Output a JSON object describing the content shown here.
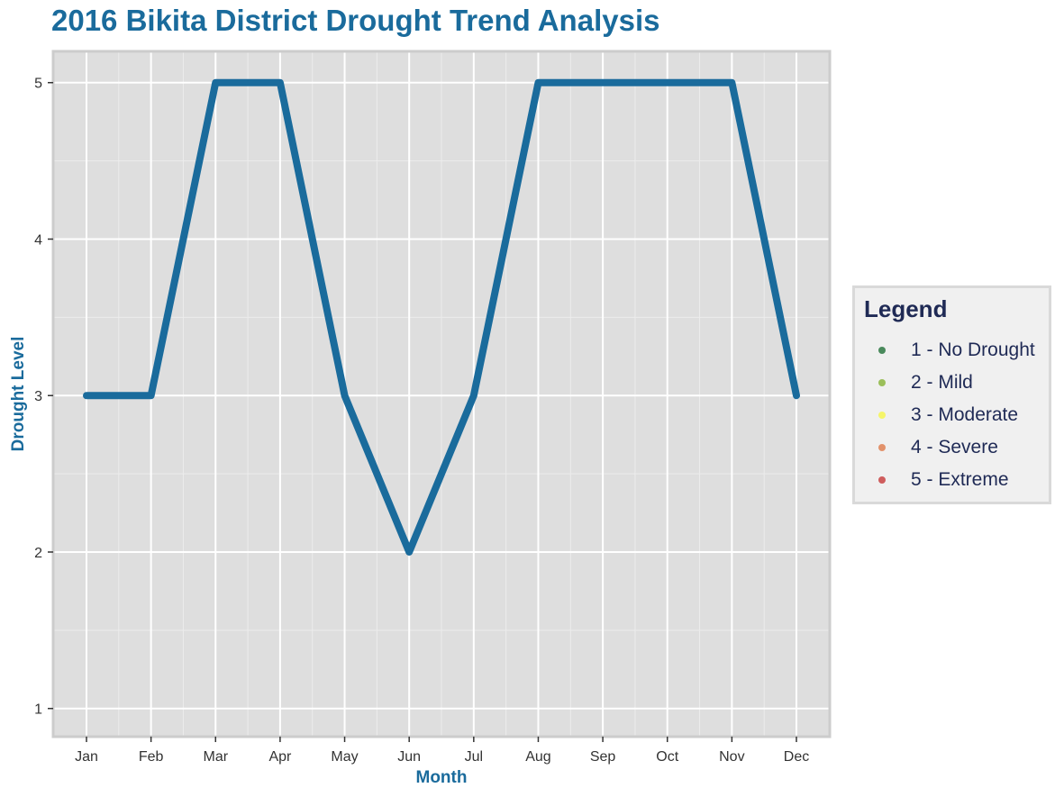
{
  "chart_data": {
    "type": "line",
    "title": "2016 Bikita District Drought Trend Analysis",
    "xlabel": "Month",
    "ylabel": "Drought Level",
    "categories": [
      "Jan",
      "Feb",
      "Mar",
      "Apr",
      "May",
      "Jun",
      "Jul",
      "Aug",
      "Sep",
      "Oct",
      "Nov",
      "Dec"
    ],
    "series": [
      {
        "values": [
          3,
          3,
          5,
          5,
          3,
          2,
          3,
          5,
          5,
          5,
          5,
          3
        ],
        "color": "#1a6b9c"
      }
    ],
    "ylim": [
      0.82,
      5.2
    ],
    "yticks": [
      1,
      2,
      3,
      4,
      5
    ],
    "grid": true,
    "legend": {
      "title": "Legend",
      "placement": "right",
      "items": [
        {
          "label": "1 - No Drought",
          "color": "#4a8a5c"
        },
        {
          "label": "2 - Mild",
          "color": "#9bbf5a"
        },
        {
          "label": "3 - Moderate",
          "color": "#f5f56a"
        },
        {
          "label": "4 - Severe",
          "color": "#e2926b"
        },
        {
          "label": "5 - Extreme",
          "color": "#cf5d5d"
        }
      ]
    }
  }
}
